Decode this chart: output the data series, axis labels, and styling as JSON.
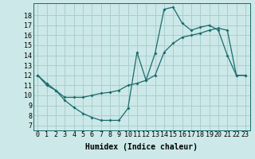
{
  "xlabel": "Humidex (Indice chaleur)",
  "bg_color": "#cce8e8",
  "grid_color": "#aacece",
  "line_color": "#1a6b6b",
  "xlim": [
    -0.5,
    23.5
  ],
  "ylim": [
    6.5,
    19.2
  ],
  "xticks": [
    0,
    1,
    2,
    3,
    4,
    5,
    6,
    7,
    8,
    9,
    10,
    11,
    12,
    13,
    14,
    15,
    16,
    17,
    18,
    19,
    20,
    21,
    22,
    23
  ],
  "yticks": [
    7,
    8,
    9,
    10,
    11,
    12,
    13,
    14,
    15,
    16,
    17,
    18
  ],
  "line1_x": [
    0,
    1,
    2,
    3,
    4,
    5,
    6,
    7,
    8,
    9,
    10,
    11,
    12,
    13,
    14,
    15,
    16,
    17,
    18,
    19,
    20,
    21,
    22,
    23
  ],
  "line1_y": [
    12,
    11,
    10.5,
    9.5,
    8.8,
    8.2,
    7.8,
    7.5,
    7.5,
    7.5,
    8.7,
    14.3,
    11.5,
    14.2,
    18.6,
    18.8,
    17.2,
    16.5,
    16.8,
    17.0,
    16.5,
    14.0,
    12.0,
    12.0
  ],
  "line2_x": [
    0,
    1,
    2,
    3,
    4,
    5,
    6,
    7,
    8,
    9,
    10,
    11,
    12,
    13,
    14,
    15,
    16,
    17,
    18,
    19,
    20,
    21,
    22,
    23
  ],
  "line2_y": [
    12,
    11.2,
    10.5,
    9.8,
    9.8,
    9.8,
    10.0,
    10.2,
    10.3,
    10.5,
    11.0,
    11.2,
    11.5,
    12.0,
    14.3,
    15.2,
    15.8,
    16.0,
    16.2,
    16.5,
    16.7,
    16.5,
    12.0,
    12.0
  ],
  "tick_fontsize": 6,
  "label_fontsize": 7
}
